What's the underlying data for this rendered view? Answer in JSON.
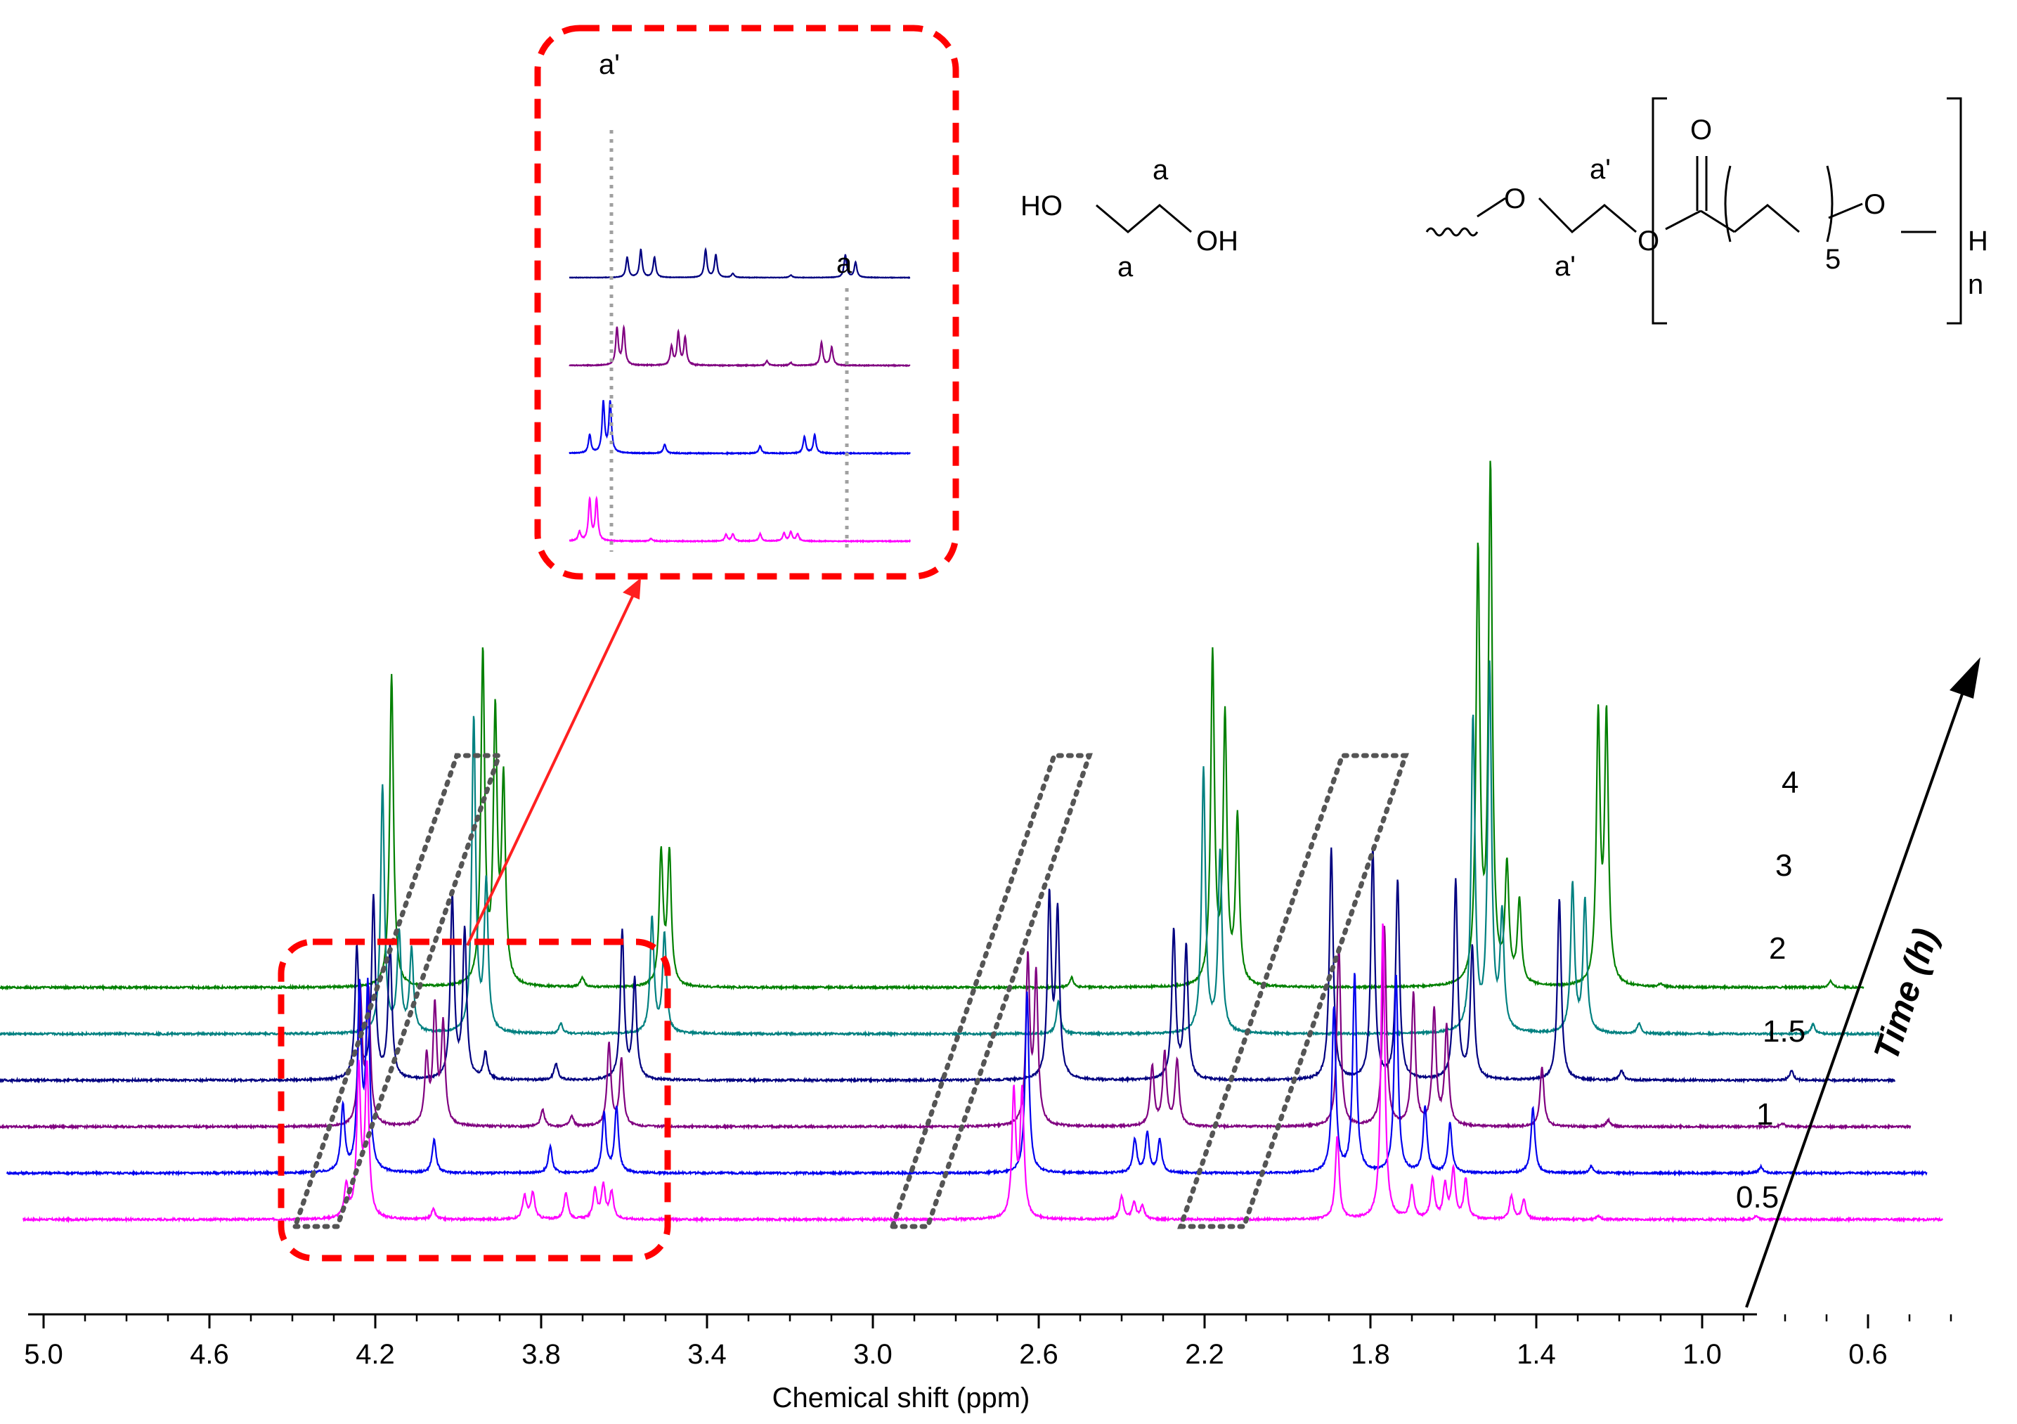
{
  "chart_data": {
    "type": "line",
    "xlabel": "Chemical shift (ppm)",
    "xlim": [
      5.05,
      0.42
    ],
    "x_ticks": [
      "5.0",
      "4.6",
      "4.2",
      "3.8",
      "3.4",
      "3.0",
      "2.6",
      "2.2",
      "1.8",
      "1.4",
      "1.0",
      "0.6"
    ],
    "x_tick_values": [
      5.0,
      4.6,
      4.2,
      3.8,
      3.4,
      3.0,
      2.6,
      2.2,
      1.8,
      1.4,
      1.0,
      0.6
    ],
    "depth_axis_label": "Time (h)",
    "series": [
      {
        "name": "0.5",
        "color": "#ff00ff",
        "x_start": 5.05,
        "x_end": 0.42,
        "peaks": [
          [
            4.27,
            0.1
          ],
          [
            4.24,
            0.45
          ],
          [
            4.22,
            0.45
          ],
          [
            4.06,
            0.03
          ],
          [
            3.84,
            0.07
          ],
          [
            3.82,
            0.08
          ],
          [
            3.74,
            0.08
          ],
          [
            3.67,
            0.09
          ],
          [
            3.65,
            0.1
          ],
          [
            3.63,
            0.08
          ],
          [
            2.66,
            0.38
          ],
          [
            2.64,
            0.38
          ],
          [
            2.4,
            0.07
          ],
          [
            2.37,
            0.05
          ],
          [
            2.35,
            0.04
          ],
          [
            1.88,
            0.25
          ],
          [
            1.77,
            0.9
          ],
          [
            1.7,
            0.1
          ],
          [
            1.65,
            0.12
          ],
          [
            1.62,
            0.1
          ],
          [
            1.6,
            0.15
          ],
          [
            1.57,
            0.12
          ],
          [
            1.46,
            0.07
          ],
          [
            1.43,
            0.06
          ],
          [
            1.25,
            0.01
          ],
          [
            0.87,
            0.01
          ]
        ]
      },
      {
        "name": "1",
        "color": "#0000ee",
        "x_start": 5.05,
        "x_end": 0.42,
        "peaks": [
          [
            4.24,
            0.2
          ],
          [
            4.2,
            0.55
          ],
          [
            4.18,
            0.55
          ],
          [
            4.02,
            0.1
          ],
          [
            3.74,
            0.08
          ],
          [
            3.61,
            0.18
          ],
          [
            3.58,
            0.2
          ],
          [
            2.59,
            0.55
          ],
          [
            2.33,
            0.1
          ],
          [
            2.3,
            0.12
          ],
          [
            2.27,
            0.1
          ],
          [
            1.85,
            0.5
          ],
          [
            1.8,
            0.6
          ],
          [
            1.7,
            0.6
          ],
          [
            1.63,
            0.2
          ],
          [
            1.57,
            0.15
          ],
          [
            1.37,
            0.2
          ],
          [
            1.23,
            0.02
          ],
          [
            0.82,
            0.02
          ]
        ]
      },
      {
        "name": "1.5",
        "color": "#800080",
        "x_start": 5.05,
        "x_end": 0.42,
        "peaks": [
          [
            4.16,
            0.4
          ],
          [
            4.14,
            0.4
          ],
          [
            4.0,
            0.2
          ],
          [
            3.98,
            0.35
          ],
          [
            3.96,
            0.3
          ],
          [
            3.72,
            0.05
          ],
          [
            3.65,
            0.03
          ],
          [
            3.56,
            0.25
          ],
          [
            3.53,
            0.2
          ],
          [
            2.55,
            0.5
          ],
          [
            2.53,
            0.45
          ],
          [
            2.25,
            0.18
          ],
          [
            2.22,
            0.22
          ],
          [
            2.19,
            0.2
          ],
          [
            1.8,
            0.55
          ],
          [
            1.69,
            0.6
          ],
          [
            1.62,
            0.4
          ],
          [
            1.57,
            0.35
          ],
          [
            1.54,
            0.3
          ],
          [
            1.31,
            0.18
          ],
          [
            1.15,
            0.02
          ],
          [
            0.73,
            0.01
          ]
        ]
      },
      {
        "name": "2",
        "color": "#000080",
        "x_start": 5.05,
        "x_end": 0.42,
        "peaks": [
          [
            4.13,
            0.4
          ],
          [
            4.09,
            0.55
          ],
          [
            4.05,
            0.4
          ],
          [
            3.9,
            0.55
          ],
          [
            3.87,
            0.45
          ],
          [
            3.82,
            0.08
          ],
          [
            3.65,
            0.05
          ],
          [
            3.49,
            0.45
          ],
          [
            3.46,
            0.3
          ],
          [
            2.46,
            0.55
          ],
          [
            2.44,
            0.5
          ],
          [
            2.16,
            0.45
          ],
          [
            2.13,
            0.4
          ],
          [
            1.78,
            0.7
          ],
          [
            1.68,
            0.7
          ],
          [
            1.62,
            0.6
          ],
          [
            1.48,
            0.6
          ],
          [
            1.44,
            0.4
          ],
          [
            1.23,
            0.55
          ],
          [
            1.08,
            0.03
          ],
          [
            0.67,
            0.03
          ]
        ]
      },
      {
        "name": "3",
        "color": "#008080",
        "x_start": 5.05,
        "x_end": 0.42,
        "peaks": [
          [
            4.03,
            0.75
          ],
          [
            3.99,
            0.3
          ],
          [
            3.96,
            0.25
          ],
          [
            3.81,
            0.95
          ],
          [
            3.78,
            0.45
          ],
          [
            3.6,
            0.03
          ],
          [
            3.38,
            0.35
          ],
          [
            3.35,
            0.3
          ],
          [
            2.4,
            0.1
          ],
          [
            2.05,
            0.8
          ],
          [
            2.01,
            0.55
          ],
          [
            1.4,
            0.95
          ],
          [
            1.36,
            1.1
          ],
          [
            1.33,
            0.35
          ],
          [
            1.16,
            0.45
          ],
          [
            1.13,
            0.4
          ],
          [
            1.0,
            0.03
          ],
          [
            0.58,
            0.03
          ]
        ]
      },
      {
        "name": "4",
        "color": "#008000",
        "x_start": 5.05,
        "x_end": 0.42,
        "peaks": [
          [
            3.97,
            0.95
          ],
          [
            3.75,
            1.0
          ],
          [
            3.72,
            0.8
          ],
          [
            3.7,
            0.6
          ],
          [
            3.51,
            0.03
          ],
          [
            3.32,
            0.4
          ],
          [
            3.3,
            0.4
          ],
          [
            2.33,
            0.03
          ],
          [
            1.99,
            1.0
          ],
          [
            1.96,
            0.8
          ],
          [
            1.93,
            0.5
          ],
          [
            1.35,
            1.3
          ],
          [
            1.32,
            1.55
          ],
          [
            1.28,
            0.35
          ],
          [
            1.25,
            0.25
          ],
          [
            1.06,
            0.8
          ],
          [
            1.04,
            0.8
          ],
          [
            0.91,
            0.01
          ],
          [
            0.5,
            0.02
          ]
        ]
      }
    ]
  },
  "time_labels": [
    "0.5",
    "1",
    "1.5",
    "2",
    "3",
    "4"
  ],
  "time_axis_title": "Time (h)",
  "inset": {
    "label_a_prime": "a'",
    "label_a": "a"
  },
  "structures": {
    "ethylene_glycol": {
      "ho": "HO",
      "oh": "OH",
      "a_top": "a",
      "a_bottom": "a"
    },
    "pcl": {
      "o1": "O",
      "o2": "O",
      "o_carbonyl": "O",
      "o3": "O",
      "a_prime_top": "a'",
      "a_prime_bottom": "a'",
      "subscript_5": "5",
      "h": "H",
      "n": "n"
    }
  },
  "colors": {
    "highlight_box": "#ff0000",
    "parallelogram": "#555555",
    "axis": "#000000"
  }
}
